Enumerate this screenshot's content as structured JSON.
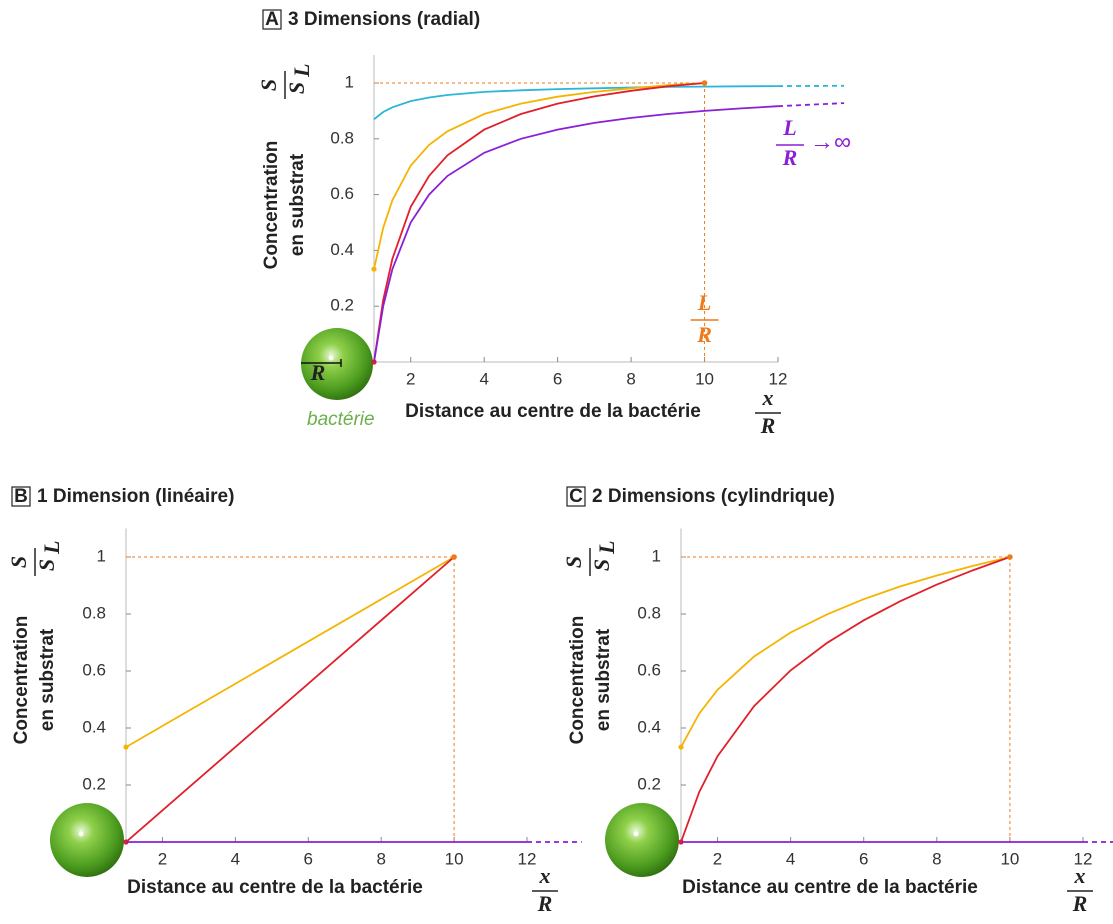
{
  "chart_data": [
    {
      "type": "line",
      "panel": "A",
      "title": "3 Dimensions (radial)",
      "xlabel": "Distance au centre de la bactérie",
      "x_fraction": [
        "x",
        "R"
      ],
      "ylabel": [
        "Concentration",
        "en substrat"
      ],
      "y_fraction": {
        "num": "S",
        "den": "S",
        "den_sub": "L"
      },
      "x": [
        1,
        1.25,
        1.5,
        2,
        2.5,
        3,
        4,
        5,
        6,
        7,
        8,
        9,
        10,
        11,
        12,
        13.8
      ],
      "xlim": [
        1,
        12
      ],
      "xticks": [
        2,
        4,
        6,
        8,
        10,
        12
      ],
      "ylim": [
        0,
        1.1
      ],
      "yticks": [
        0.2,
        0.4,
        0.6,
        0.8,
        1
      ],
      "reference_point": [
        10,
        1
      ],
      "reference_color": "#f07a1a",
      "reference_label": [
        "L",
        "R"
      ],
      "limit_label": {
        "num": "L",
        "den": "R",
        "suffix": "→∞",
        "color": "#8b1fd8"
      },
      "sphere_label": "R",
      "bacterium_label": "bactérie",
      "series": [
        {
          "color": "#2bb5d8",
          "values": [
            0.87,
            0.896,
            0.913,
            0.935,
            0.948,
            0.957,
            0.968,
            0.974,
            0.978,
            0.981,
            0.984,
            0.986,
            0.987,
            0.988,
            0.989,
            null
          ]
        },
        {
          "color": "#2bb5d8",
          "dashed": true,
          "values": [
            null,
            null,
            null,
            null,
            null,
            null,
            null,
            null,
            null,
            null,
            null,
            null,
            null,
            null,
            0.989,
            0.99
          ]
        },
        {
          "color": "#f5b400",
          "start_dot": true,
          "values": [
            0.333,
            0.481,
            0.58,
            0.704,
            0.778,
            0.827,
            0.889,
            0.926,
            0.951,
            0.968,
            0.981,
            0.992,
            1,
            null,
            null,
            null
          ]
        },
        {
          "color": "#e0202a",
          "start_dot": true,
          "values": [
            0,
            0.222,
            0.37,
            0.556,
            0.667,
            0.741,
            0.833,
            0.889,
            0.926,
            0.952,
            0.972,
            0.988,
            1,
            null,
            null,
            null
          ]
        },
        {
          "color": "#8b1fd8",
          "values": [
            0,
            0.2,
            0.333,
            0.5,
            0.6,
            0.667,
            0.75,
            0.8,
            0.833,
            0.857,
            0.875,
            0.889,
            0.9,
            0.909,
            0.917,
            null
          ]
        },
        {
          "color": "#8b1fd8",
          "dashed": true,
          "values": [
            null,
            null,
            null,
            null,
            null,
            null,
            null,
            null,
            null,
            null,
            null,
            null,
            null,
            null,
            0.917,
            0.928
          ]
        }
      ]
    },
    {
      "type": "line",
      "panel": "B",
      "title": "1 Dimension (linéaire)",
      "xlabel": "Distance au centre de la bactérie",
      "x_fraction": [
        "x",
        "R"
      ],
      "ylabel": [
        "Concentration",
        "en substrat"
      ],
      "y_fraction": {
        "num": "S",
        "den": "S",
        "den_sub": "L"
      },
      "x": [
        1,
        10,
        12,
        13.5
      ],
      "xlim": [
        1,
        12
      ],
      "xticks": [
        2,
        4,
        6,
        8,
        10,
        12
      ],
      "ylim": [
        0,
        1.1
      ],
      "yticks": [
        0.2,
        0.4,
        0.6,
        0.8,
        1
      ],
      "reference_point": [
        10,
        1
      ],
      "reference_color": "#f07a1a",
      "series": [
        {
          "color": "#f5b400",
          "start_dot": true,
          "values": [
            0.333,
            1,
            null,
            null
          ]
        },
        {
          "color": "#e0202a",
          "start_dot": true,
          "values": [
            0,
            1,
            null,
            null
          ]
        },
        {
          "color": "#8b1fd8",
          "values": [
            0,
            0,
            0,
            null
          ]
        },
        {
          "color": "#8b1fd8",
          "dashed": true,
          "values": [
            null,
            null,
            0,
            0
          ]
        }
      ]
    },
    {
      "type": "line",
      "panel": "C",
      "title": "2 Dimensions (cylindrique)",
      "xlabel": "Distance au centre de la bactérie",
      "x_fraction": [
        "x",
        "R"
      ],
      "ylabel": [
        "Concentration",
        "en substrat"
      ],
      "y_fraction": {
        "num": "S",
        "den": "S",
        "den_sub": "L"
      },
      "x": [
        1,
        1.5,
        2,
        3,
        4,
        5,
        6,
        7,
        8,
        9,
        10,
        12,
        13.5
      ],
      "xlim": [
        1,
        12
      ],
      "xticks": [
        2,
        4,
        6,
        8,
        10,
        12
      ],
      "ylim": [
        0,
        1.1
      ],
      "yticks": [
        0.2,
        0.4,
        0.6,
        0.8,
        1
      ],
      "reference_point": [
        10,
        1
      ],
      "reference_color": "#f07a1a",
      "series": [
        {
          "color": "#f5b400",
          "start_dot": true,
          "values": [
            0.333,
            0.451,
            0.534,
            0.651,
            0.735,
            0.799,
            0.852,
            0.897,
            0.935,
            0.969,
            1,
            null,
            null
          ]
        },
        {
          "color": "#e0202a",
          "start_dot": true,
          "values": [
            0,
            0.176,
            0.301,
            0.477,
            0.602,
            0.699,
            0.778,
            0.845,
            0.903,
            0.954,
            1,
            null,
            null
          ]
        },
        {
          "color": "#8b1fd8",
          "values": [
            0,
            0,
            0,
            0,
            0,
            0,
            0,
            0,
            0,
            0,
            0,
            0,
            null
          ]
        },
        {
          "color": "#8b1fd8",
          "dashed": true,
          "values": [
            null,
            null,
            null,
            null,
            null,
            null,
            null,
            null,
            null,
            null,
            null,
            0,
            0
          ]
        }
      ]
    }
  ]
}
